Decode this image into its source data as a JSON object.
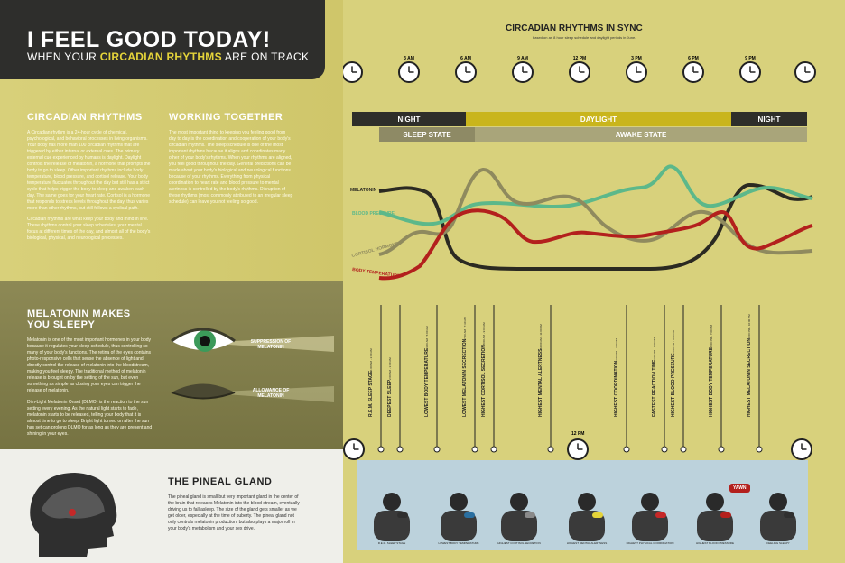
{
  "hero": {
    "title": "I FEEL GOOD TODAY!",
    "subtitle_start": "WHEN YOUR ",
    "subtitle_highlight": "CIRCADIAN RHYTHMS",
    "subtitle_end": " ARE ON TRACK"
  },
  "sections": {
    "circadian": {
      "heading": "CIRCADIAN RHYTHMS",
      "p1": "A Circadian rhythm is a 24-hour cycle of chemical, psychological, and behavioral processes in living organisms. Your body has more than 100 circadian rhythms that are triggered by either internal or external cues. The primary external cue experienced by humans is daylight. Daylight controls the release of melatonin, a hormone that prompts the body to go to sleep. Other important rhythms include body temperature, blood pressure, and cortisol release. Your body temperature fluctuates throughout the day but still has a strict cycle that helps trigger the body to sleep and awaken each day. The same goes for your heart rate. Cortisol is a hormone that responds to stress levels throughout the day, thus varies more than other rhythms, but still follows a cyclical path.",
      "p2": "Circadian rhythms are what keep your body and mind in line. These rhythms control your sleep schedules, your mental focus at different times of the day, and almost all of the body's biological, physical, and neurological processes."
    },
    "working": {
      "heading": "WORKING TOGETHER",
      "p1": "The most important thing to keeping you feeling good from day to day is the coordination and cooperation of your body's circadian rhythms. The sleep schedule is one of the most important rhythms because it aligns and coordinates many other of your body's rhythms. When your rhythms are aligned, you feel good throughout the day. General predictions can be made about your body's biological and neurological functions because of your rhythms. Everything from physical coordination to heart rate and blood pressure to mental alertness is controlled by the body's rhythms. Disruption of these rhythms (most commonly attributed to an irregular sleep schedule) can leave you not feeling so good."
    },
    "melatonin": {
      "heading": "MELATONIN MAKES YOU SLEEPY",
      "p1": "Melatonin is one of the most important hormones in your body because it regulates your sleep schedule, thus controlling so many of your body's functions. The retina of the eyes contains photo-responsive cells that sense the absence of light and directly control the release of melatonin into the bloodstream, making you feel sleepy. The traditional method of melatonin release is brought on by the setting of the sun, but even something as simple as closing your eyes can trigger the release of melatonin.",
      "p2": "Dim-Light Melatonin Onset (DLMO) is the reaction to the sun setting every evening. As the natural light starts to fade, melatonin starts to be released, telling your body that it is almost time to go to sleep. Bright light turned on after the sun has set can prolong DLMO for as long as they are present and shining in your eyes.",
      "suppression": "SUPPRESSION OF",
      "allowance": "ALLOWANCE OF",
      "melatonin_word": "MELATONIN"
    },
    "pineal": {
      "heading": "THE PINEAL GLAND",
      "p1": "The pineal gland is small but very important gland in the center of the brain that releases Melatonin into the blood stream, eventually driving us to fall asleep. The size of the gland gets smaller as we get older, especially at the time of puberty. The pineal gland not only controls melatonin production, but also plays a major roll in your body's metabolism and your sex drive."
    }
  },
  "chart": {
    "title": "CIRCADIAN RHYTHMS IN SYNC",
    "subtitle": "based on an 8 hour sleep schedule and daylight periods in June.",
    "clock_labels": [
      "3 AM",
      "6 AM",
      "9 AM",
      "12 PM",
      "3 PM",
      "6 PM",
      "9 PM"
    ],
    "bands": {
      "night1": "NIGHT",
      "daylight": "DAYLIGHT",
      "night2": "NIGHT",
      "sleep": "SLEEP STATE",
      "awake": "AWAKE STATE"
    },
    "series_labels": {
      "melatonin": "MELATONIN",
      "blood_pressure": "BLOOD PRESSURE",
      "cortisol": "CORTISOL HORMONE",
      "body_temp": "BODY TEMPERATURE"
    },
    "colors": {
      "melatonin": "#2b2a22",
      "blood_pressure": "#5cb88a",
      "cortisol": "#8f8a5e",
      "body_temp": "#b3201d"
    },
    "events": [
      {
        "name": "R.E.M. SLEEP STAGE",
        "time": "1:00 AM - 2:00 AM"
      },
      {
        "name": "DEEPEST SLEEP",
        "time": "2:00 AM - 3:00 AM"
      },
      {
        "name": "LOWEST BODY TEMPERATURE",
        "time": "4:00 AM - 5:00 AM"
      },
      {
        "name": "LOWEST MELATONIN SECRECTION",
        "time": "7:00 AM - 7:30 AM"
      },
      {
        "name": "HIGHEST CORTISOL SECRETION",
        "time": "8:00 AM - 9:00 AM"
      },
      {
        "name": "HIGHEST MENTAL ALERTNESS",
        "time": "10:00 AM - 11:00 AM"
      },
      {
        "name": "HIGHEST COORDINATION",
        "time": "2:00 PM - 3:00 PM"
      },
      {
        "name": "FASTEST REACTION TIME",
        "time": "3:00 PM - 4:00 PM"
      },
      {
        "name": "HIGHEST BLOOD PRESSURE",
        "time": "5:00 PM - 6:00 PM"
      },
      {
        "name": "HIGHEST BODY TEMPERATURE",
        "time": "6:00 PM - 7:00 PM"
      },
      {
        "name": "HIGHEST MELATONIN SECRECTION",
        "time": "9:00 PM - 10:00 PM"
      }
    ],
    "noon_label": "12 PM",
    "yawn": "YAWN",
    "bottom_captions": [
      "R.E.M. SLEEP STAGE",
      "LOWEST BODY TEMPERATURE",
      "HIGHEST CORTISOL SECRETION",
      "HIGHEST MENTAL ALERTNESS",
      "HIGHEST PHYSICAL COORDINATION",
      "HIGHEST BLOOD PRESSURE",
      "FEELING SLEEPY"
    ]
  }
}
